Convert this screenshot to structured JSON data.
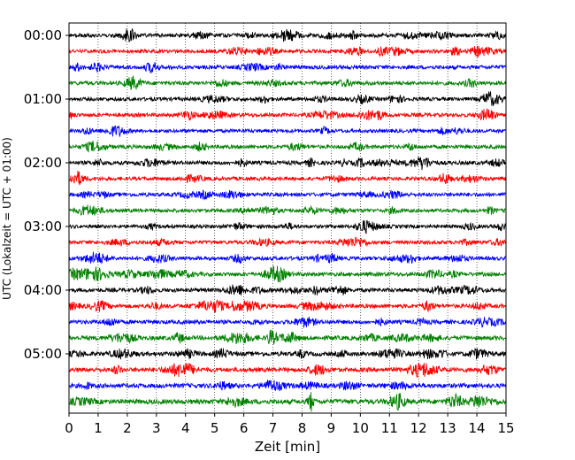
{
  "chart_data": {
    "type": "line",
    "subtype": "helicorder",
    "xlabel": "Zeit  [min]",
    "ylabel": "UTC (Lokalzeit = UTC + 01:00)",
    "xlim": [
      0,
      15
    ],
    "x_ticks": [
      "0",
      "1",
      "2",
      "3",
      "4",
      "5",
      "6",
      "7",
      "8",
      "9",
      "10",
      "11",
      "12",
      "13",
      "14",
      "15"
    ],
    "y_tick_labels": [
      "00:00",
      "01:00",
      "02:00",
      "03:00",
      "04:00",
      "05:00"
    ],
    "traces_per_hour": 4,
    "trace_count": 24,
    "trace_colors": [
      "#000000",
      "#ff0000",
      "#0000ff",
      "#008000"
    ],
    "grid": "vertical-dotted",
    "series": [
      {
        "trace_start": "00:00",
        "color": "#000000",
        "amplitude": 0.55
      },
      {
        "trace_start": "00:15",
        "color": "#ff0000",
        "amplitude": 0.5
      },
      {
        "trace_start": "00:30",
        "color": "#0000ff",
        "amplitude": 0.55
      },
      {
        "trace_start": "00:45",
        "color": "#008000",
        "amplitude": 0.6
      },
      {
        "trace_start": "01:00",
        "color": "#000000",
        "amplitude": 0.5
      },
      {
        "trace_start": "01:15",
        "color": "#ff0000",
        "amplitude": 0.55
      },
      {
        "trace_start": "01:30",
        "color": "#0000ff",
        "amplitude": 0.45
      },
      {
        "trace_start": "01:45",
        "color": "#008000",
        "amplitude": 0.55
      },
      {
        "trace_start": "02:00",
        "color": "#000000",
        "amplitude": 0.6
      },
      {
        "trace_start": "02:15",
        "color": "#ff0000",
        "amplitude": 0.5
      },
      {
        "trace_start": "02:30",
        "color": "#0000ff",
        "amplitude": 0.55
      },
      {
        "trace_start": "02:45",
        "color": "#008000",
        "amplitude": 0.5
      },
      {
        "trace_start": "03:00",
        "color": "#000000",
        "amplitude": 0.45
      },
      {
        "trace_start": "03:15",
        "color": "#ff0000",
        "amplitude": 0.5
      },
      {
        "trace_start": "03:30",
        "color": "#0000ff",
        "amplitude": 0.55
      },
      {
        "trace_start": "03:45",
        "color": "#008000",
        "amplitude": 0.6
      },
      {
        "trace_start": "04:00",
        "color": "#000000",
        "amplitude": 0.6
      },
      {
        "trace_start": "04:15",
        "color": "#ff0000",
        "amplitude": 0.65
      },
      {
        "trace_start": "04:30",
        "color": "#0000ff",
        "amplitude": 0.65
      },
      {
        "trace_start": "04:45",
        "color": "#008000",
        "amplitude": 0.75
      },
      {
        "trace_start": "05:00",
        "color": "#000000",
        "amplitude": 0.75
      },
      {
        "trace_start": "05:15",
        "color": "#ff0000",
        "amplitude": 0.75
      },
      {
        "trace_start": "05:30",
        "color": "#0000ff",
        "amplitude": 0.8
      },
      {
        "trace_start": "05:45",
        "color": "#008000",
        "amplitude": 0.9
      }
    ]
  }
}
